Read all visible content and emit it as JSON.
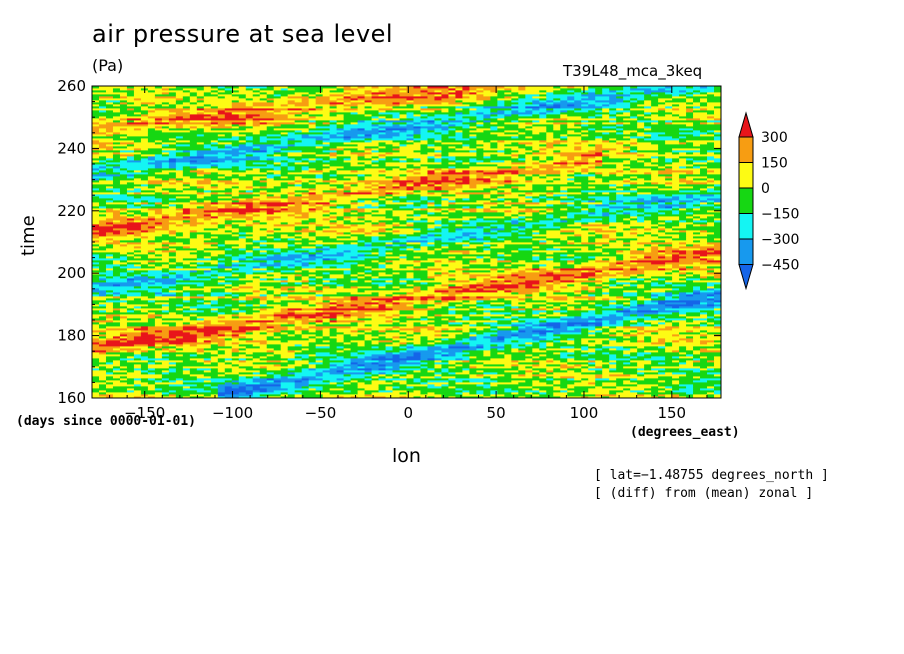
{
  "header": {
    "title": "air pressure at sea level",
    "units": "(Pa)",
    "run": "T39L48_mca_3keq"
  },
  "axes": {
    "y_label": "time",
    "y_units": "(days since 0000-01-01)",
    "x_label": "lon",
    "x_units": "(degrees_east)"
  },
  "notes": {
    "line1": "[ lat=−1.48755 degrees_north ]",
    "line2": "[ (diff) from (mean) zonal ]"
  },
  "colors": {
    "gt300": "#e8151b",
    "c150_300": "#f79d12",
    "c0_150": "#fdfb14",
    "cm150_0": "#16d713",
    "cm300_m150": "#14f5f3",
    "cm450_m300": "#1799ee",
    "lt_m450": "#1565e8"
  },
  "chart_data": {
    "type": "heatmap",
    "x_range": [
      -180,
      178
    ],
    "y_range": [
      160,
      260
    ],
    "x_ticks": [
      -150,
      -100,
      -50,
      0,
      50,
      100,
      150
    ],
    "x_tick_labels": [
      "−150",
      "−100",
      "−50",
      "0",
      "50",
      "100",
      "150"
    ],
    "y_ticks": [
      160,
      180,
      200,
      220,
      240,
      260
    ],
    "y_tick_labels": [
      "160",
      "180",
      "200",
      "220",
      "240",
      "260"
    ],
    "colorbar": {
      "levels": [
        -450,
        -300,
        -150,
        0,
        150,
        300
      ],
      "level_labels": [
        "−450",
        "−300",
        "−150",
        "0",
        "150",
        "300"
      ],
      "extend": "both"
    },
    "features": [
      {
        "kind": "negative-band",
        "from": [
          -100,
          162
        ],
        "to": [
          178,
          193
        ],
        "value": -400
      },
      {
        "kind": "positive-band",
        "from": [
          -180,
          176
        ],
        "to": [
          178,
          207
        ],
        "value": 300
      },
      {
        "kind": "negative-band",
        "from": [
          -180,
          195
        ],
        "to": [
          178,
          225
        ],
        "value": -250
      },
      {
        "kind": "positive-band",
        "from": [
          -180,
          214
        ],
        "to": [
          100,
          236
        ],
        "value": 250
      },
      {
        "kind": "negative-band",
        "from": [
          -180,
          232
        ],
        "to": [
          178,
          262
        ],
        "value": -300
      },
      {
        "kind": "positive-band",
        "from": [
          -180,
          246
        ],
        "to": [
          178,
          268
        ],
        "value": 250
      }
    ]
  }
}
